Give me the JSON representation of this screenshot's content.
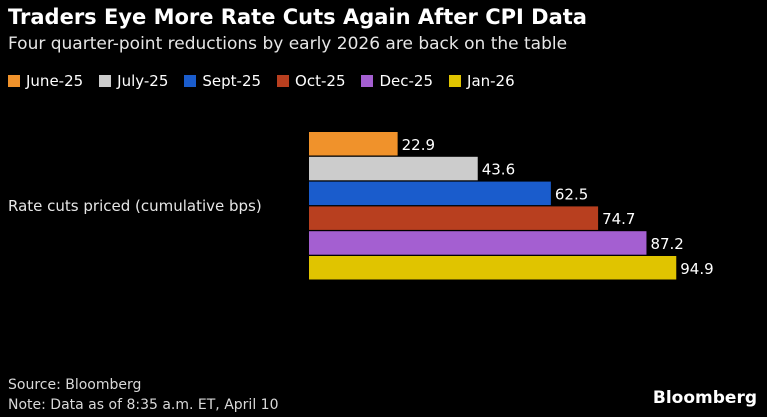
{
  "chart_data": {
    "type": "bar",
    "orientation": "horizontal",
    "title": "Traders Eye More Rate Cuts Again After CPI Data",
    "subtitle": "Four quarter-point reductions by early 2026 are back on the table",
    "categories": [
      "Rate cuts priced (cumulative bps)"
    ],
    "series": [
      {
        "name": "June-25",
        "values": [
          22.9
        ],
        "color": "#f0922b"
      },
      {
        "name": "July-25",
        "values": [
          43.6
        ],
        "color": "#cccccc"
      },
      {
        "name": "Sept-25",
        "values": [
          62.5
        ],
        "color": "#1a5ccc"
      },
      {
        "name": "Oct-25",
        "values": [
          74.7
        ],
        "color": "#b83f1f"
      },
      {
        "name": "Dec-25",
        "values": [
          87.2
        ],
        "color": "#a45fd1"
      },
      {
        "name": "Jan-26",
        "values": [
          94.9
        ],
        "color": "#e0c400"
      }
    ],
    "xlim": [
      0,
      100
    ],
    "grid": false,
    "legend_position": "top-left"
  },
  "footer": {
    "source": "Source: Bloomberg",
    "note": "Note: Data as of 8:35 a.m. ET, April 10",
    "brand": "Bloomberg"
  }
}
